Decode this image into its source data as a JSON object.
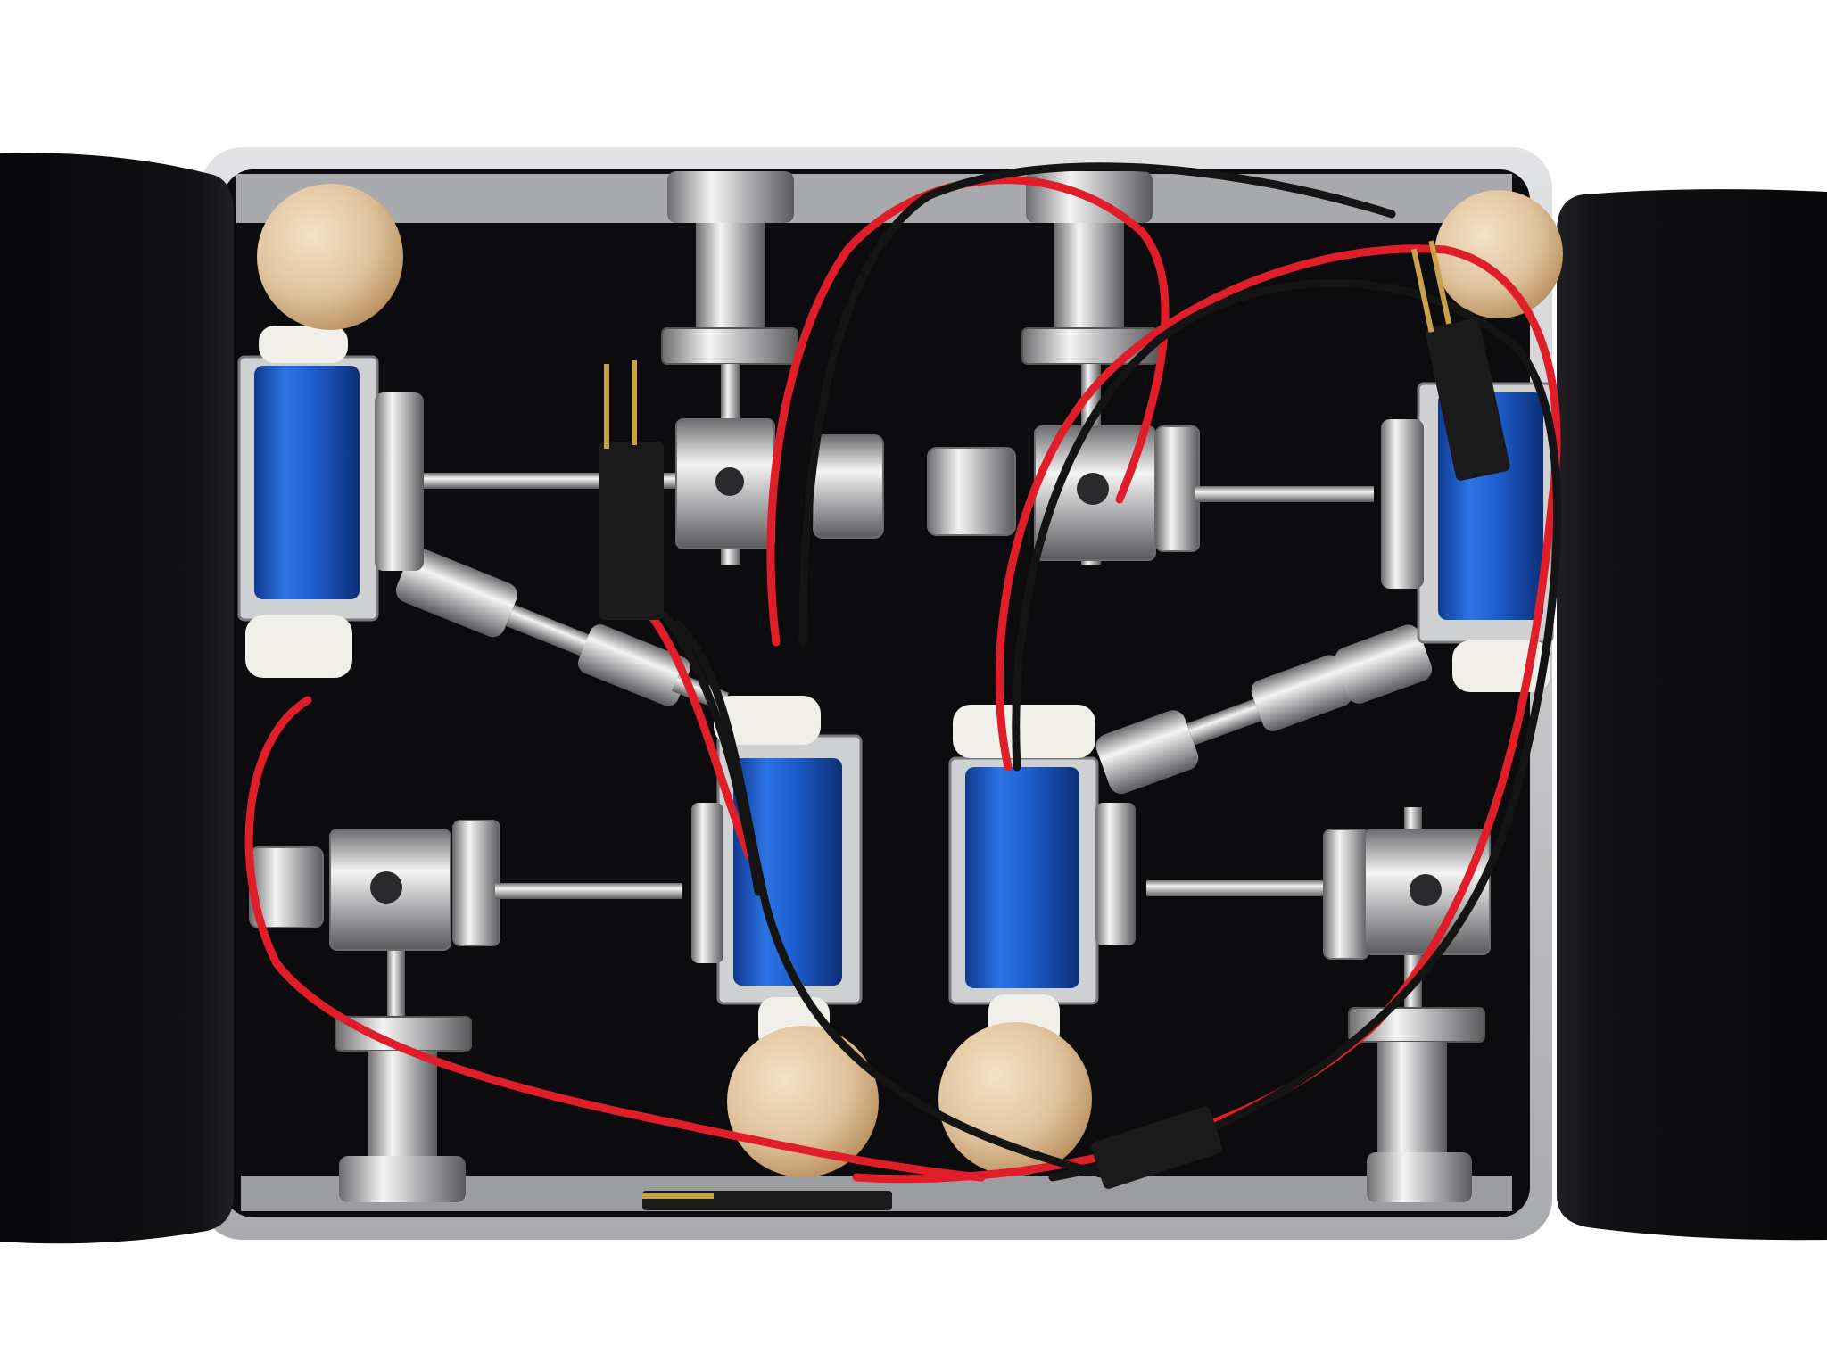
{
  "photo": {
    "palette": {
      "background": "#ffffff",
      "felt": "#0c0c0e",
      "felt_edge": "#1c1c20",
      "tin_rim": "#c9cacc",
      "tin_inner": "#9a9b9e",
      "chrome_light": "#f2f2f2",
      "chrome_mid": "#b8b8ba",
      "chrome_dark": "#6d6d70",
      "coil_blue": "#1e5fd0",
      "coil_blue_dark": "#0f3a8f",
      "wood_bead": "#e4c9a6",
      "wood_bead_shade": "#c9a47a",
      "felt_pad": "#f1efe9",
      "wire_red": "#e01e2a",
      "wire_black": "#141414",
      "connector": "#1a1a1a",
      "pin_gold": "#c8a24a"
    },
    "objects": {
      "felt_flaps": 2,
      "solenoids": 4,
      "wooden_beads": 4,
      "knurled_adjusters": 8,
      "pin_connectors": 4
    }
  }
}
